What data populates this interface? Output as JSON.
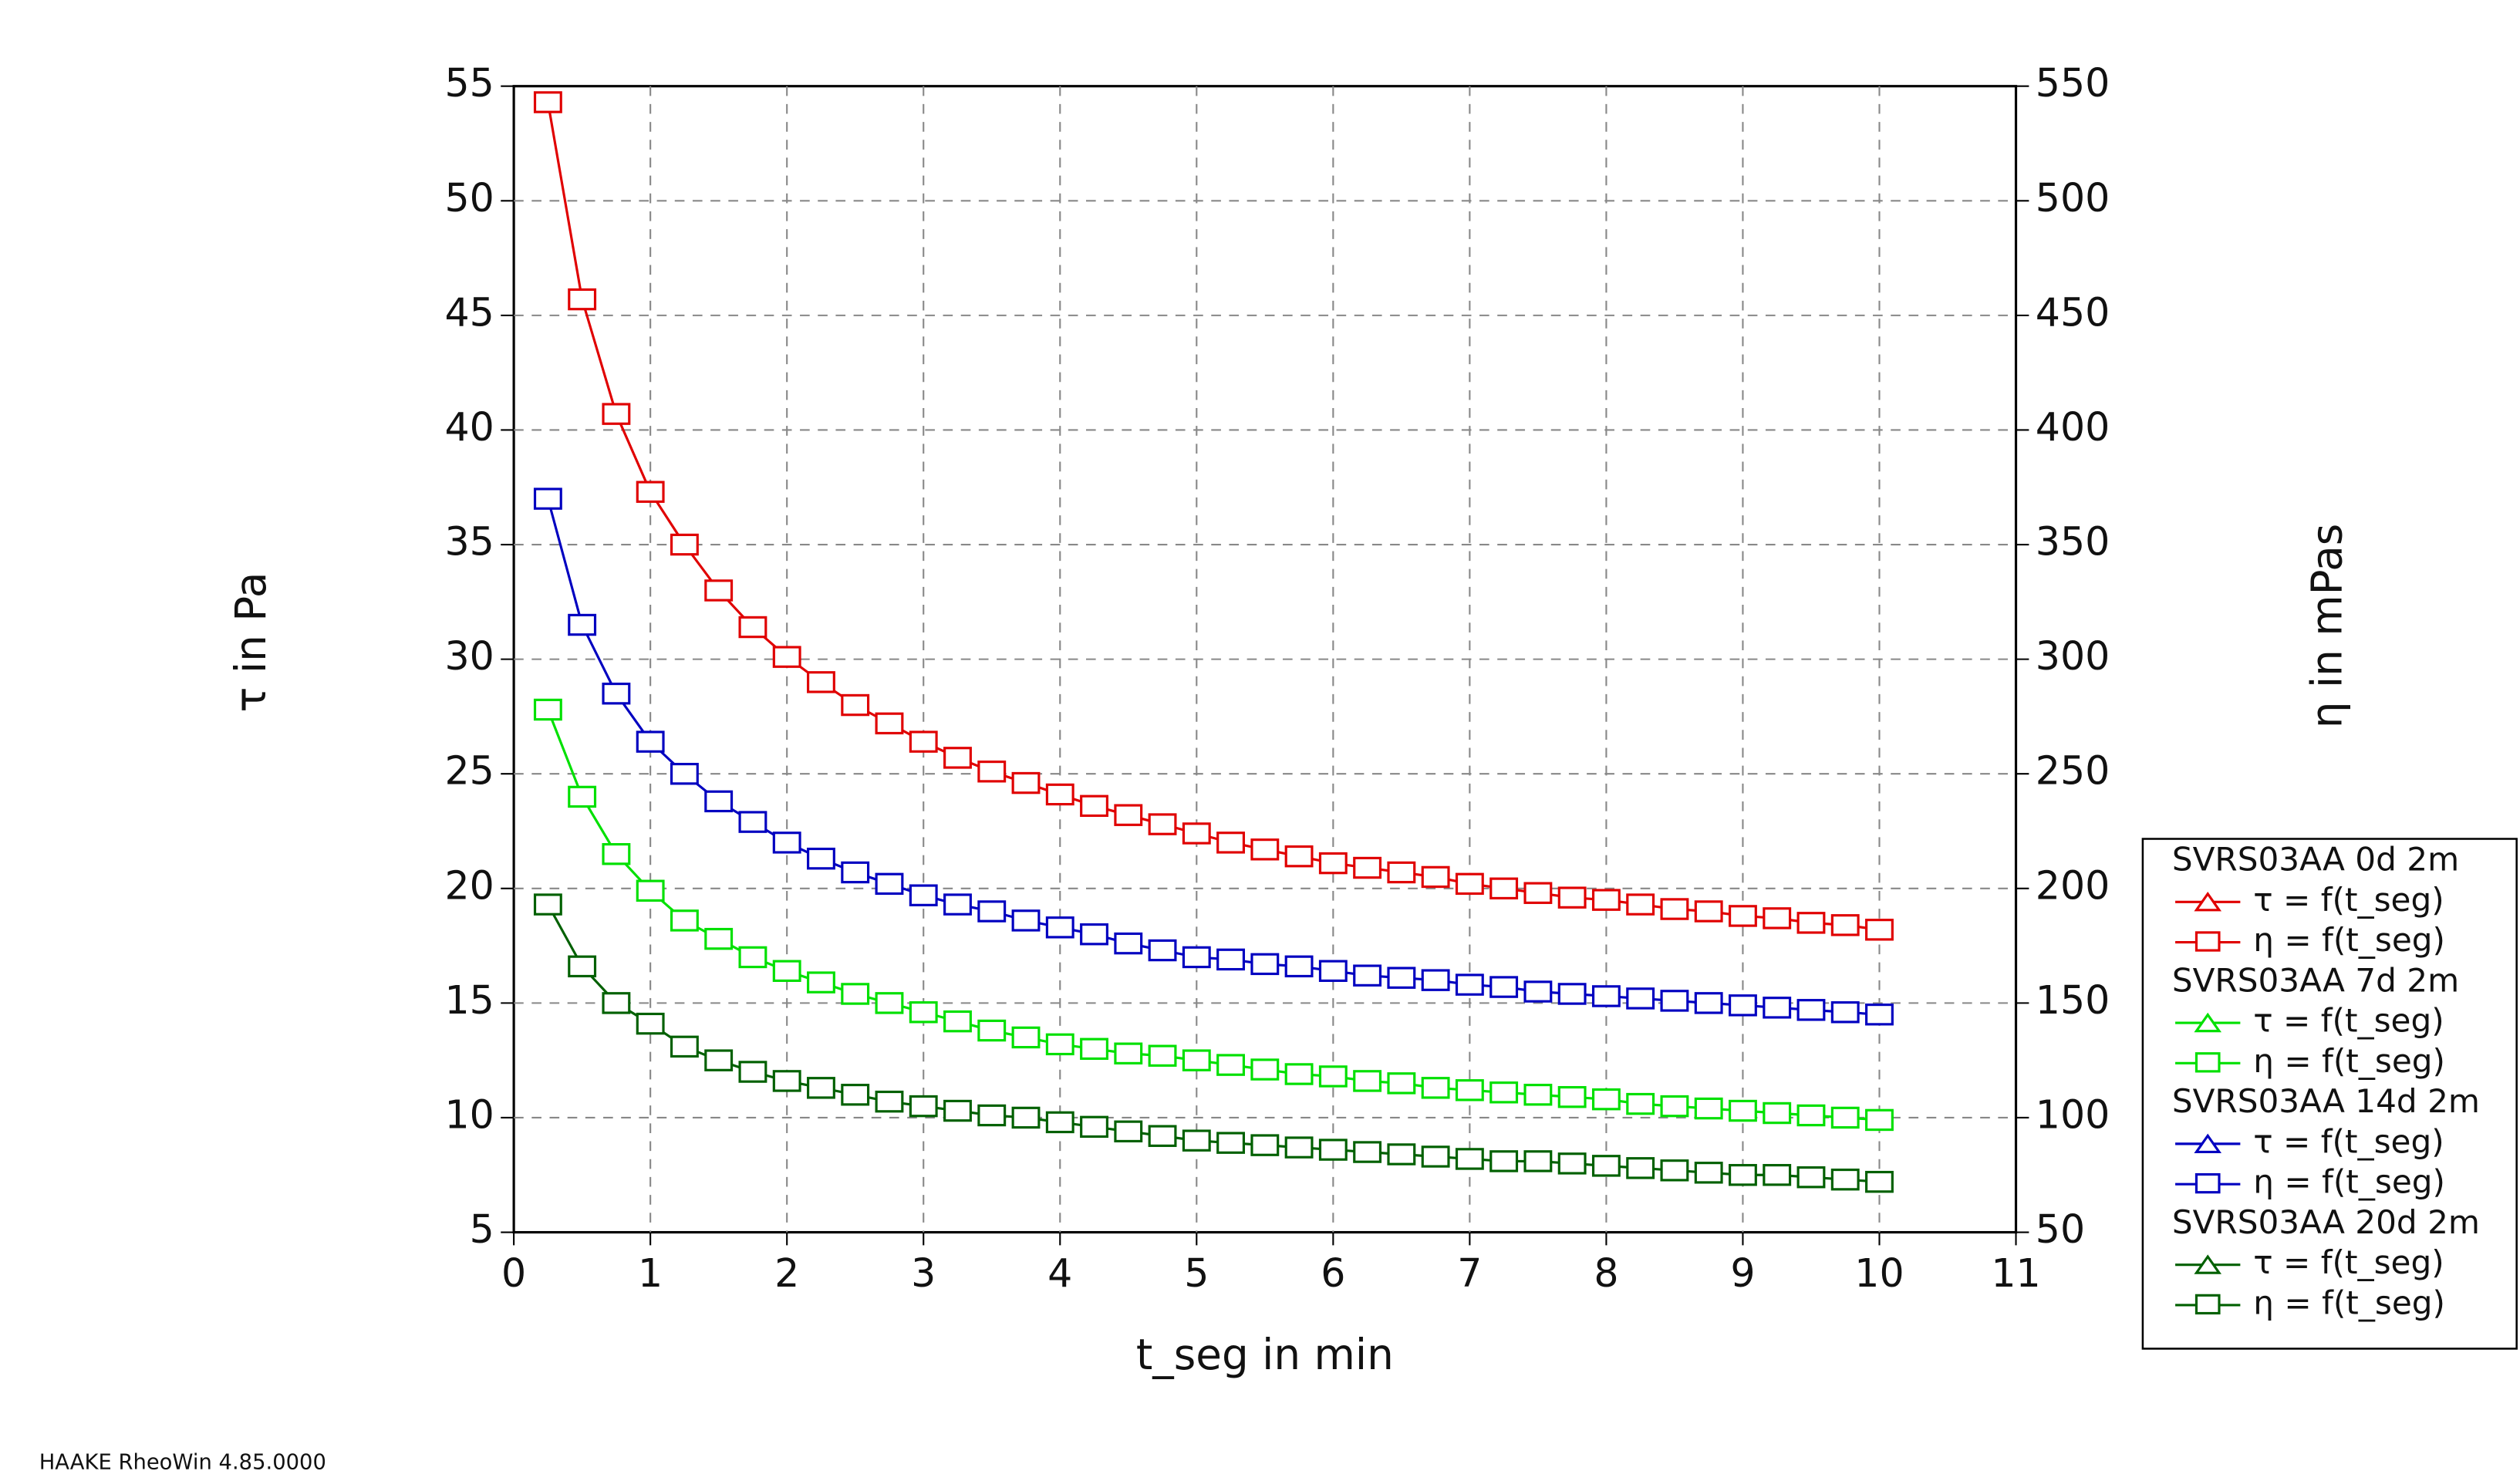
{
  "chart_data": {
    "type": "line",
    "xlabel": "t_seg in min",
    "ylabel": "τ in Pa",
    "y2label": "η in mPas",
    "footer": "HAAKE RheoWin 4.85.0000",
    "grid": true,
    "legend": "right",
    "xlim": [
      0,
      11
    ],
    "xticks": [
      0,
      1,
      2,
      3,
      4,
      5,
      6,
      7,
      8,
      9,
      10,
      11
    ],
    "ylim": [
      5,
      55
    ],
    "yticks": [
      5,
      10,
      15,
      20,
      25,
      30,
      35,
      40,
      45,
      50,
      55
    ],
    "y2lim": [
      50,
      550
    ],
    "y2ticks": [
      50,
      100,
      150,
      200,
      250,
      300,
      350,
      400,
      450,
      500,
      550
    ],
    "legend_entries": [
      "τ = f(t_seg)",
      "η = f(t_seg)"
    ],
    "legend_markers": [
      "triangle",
      "square"
    ],
    "x": [
      0.25,
      0.5,
      0.75,
      1,
      1.25,
      1.5,
      1.75,
      2,
      2.25,
      2.5,
      2.75,
      3,
      3.25,
      3.5,
      3.75,
      4,
      4.25,
      4.5,
      4.75,
      5,
      5.25,
      5.5,
      5.75,
      6,
      6.25,
      6.5,
      6.75,
      7,
      7.25,
      7.5,
      7.75,
      8,
      8.25,
      8.5,
      8.75,
      9,
      9.25,
      9.5,
      9.75,
      10
    ],
    "series": [
      {
        "name": "SVRS03AA 0d 2m",
        "color": "#e00000",
        "axis": "y2",
        "values": [
          543,
          457,
          407,
          373,
          350,
          330,
          314,
          301,
          290,
          280,
          272,
          264,
          257,
          251,
          246,
          241,
          236,
          232,
          228,
          224,
          220,
          217,
          214,
          211,
          209,
          207,
          205,
          202,
          200,
          198,
          196,
          195,
          193,
          191,
          190,
          188,
          187,
          185,
          184,
          182
        ]
      },
      {
        "name": "SVRS03AA 7d 2m",
        "color": "#00e000",
        "axis": "y2",
        "values": [
          278,
          240,
          215,
          199,
          186,
          178,
          170,
          164,
          159,
          154,
          150,
          146,
          142,
          138,
          135,
          132,
          130,
          128,
          127,
          125,
          123,
          121,
          119,
          118,
          116,
          115,
          113,
          112,
          111,
          110,
          109,
          108,
          106,
          105,
          104,
          103,
          102,
          101,
          100,
          99
        ]
      },
      {
        "name": "SVRS03AA  14d 2m",
        "color": "#0000c0",
        "axis": "y2",
        "values": [
          370,
          315,
          285,
          264,
          250,
          238,
          229,
          220,
          213,
          207,
          202,
          197,
          193,
          190,
          186,
          183,
          180,
          176,
          173,
          170,
          169,
          167,
          166,
          164,
          162,
          161,
          160,
          158,
          157,
          155,
          154,
          153,
          152,
          151,
          150,
          149,
          148,
          147,
          146,
          145
        ]
      },
      {
        "name": "SVRS03AA 20d 2m",
        "color": "#006000",
        "axis": "y2",
        "values": [
          193,
          166,
          150,
          141,
          131,
          125,
          120,
          116,
          113,
          110,
          107,
          105,
          103,
          101,
          100,
          98,
          96,
          94,
          92,
          90,
          89,
          88,
          87,
          86,
          85,
          84,
          83,
          82,
          81,
          81,
          80,
          79,
          78,
          77,
          76,
          75,
          75,
          74,
          73,
          72
        ]
      }
    ]
  }
}
